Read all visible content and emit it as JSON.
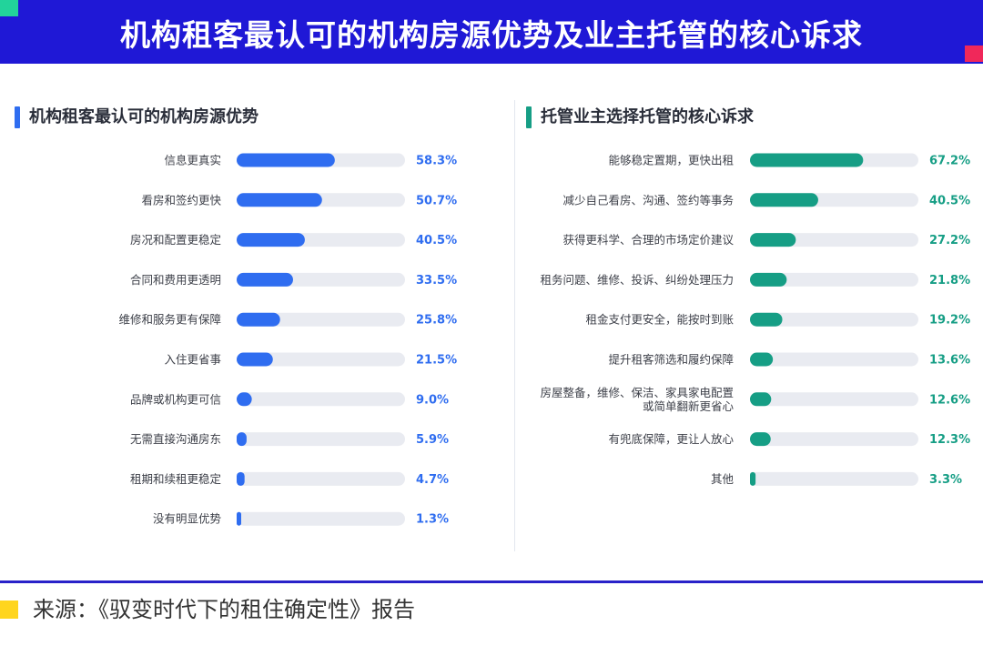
{
  "header": {
    "title": "机构租客最认可的机构房源优势及业主托管的核心诉求"
  },
  "footer": {
    "source": "来源：《驭变时代下的租住确定性》报告"
  },
  "colors": {
    "blue": "#2f6df0",
    "teal": "#169e85",
    "track": "#e9ebf1"
  },
  "chart_data": [
    {
      "type": "bar",
      "title": "机构租客最认可的机构房源优势",
      "xlim": [
        0,
        100
      ],
      "categories": [
        "信息更真实",
        "看房和签约更快",
        "房况和配置更稳定",
        "合同和费用更透明",
        "维修和服务更有保障",
        "入住更省事",
        "品牌或机构更可信",
        "无需直接沟通房东",
        "租期和续租更稳定",
        "没有明显优势"
      ],
      "values": [
        58.3,
        50.7,
        40.5,
        33.5,
        25.8,
        21.5,
        9.0,
        5.9,
        4.7,
        1.3
      ],
      "value_labels": [
        "58.3%",
        "50.7%",
        "40.5%",
        "33.5%",
        "25.8%",
        "21.5%",
        "9.0%",
        "5.9%",
        "4.7%",
        "1.3%"
      ]
    },
    {
      "type": "bar",
      "title": "托管业主选择托管的核心诉求",
      "xlim": [
        0,
        100
      ],
      "categories": [
        "能够稳定置期，更快出租",
        "减少自己看房、沟通、签约等事务",
        "获得更科学、合理的市场定价建议",
        "租务问题、维修、投诉、纠纷处理压力",
        "租金支付更安全，能按时到账",
        "提升租客筛选和履约保障",
        "房屋整备，维修、保洁、家具家电配置\n或简单翻新更省心",
        "有兜底保障，更让人放心",
        "其他"
      ],
      "values": [
        67.2,
        40.5,
        27.2,
        21.8,
        19.2,
        13.6,
        12.6,
        12.3,
        3.3
      ],
      "value_labels": [
        "67.2%",
        "40.5%",
        "27.2%",
        "21.8%",
        "19.2%",
        "13.6%",
        "12.6%",
        "12.3%",
        "3.3%"
      ]
    }
  ]
}
